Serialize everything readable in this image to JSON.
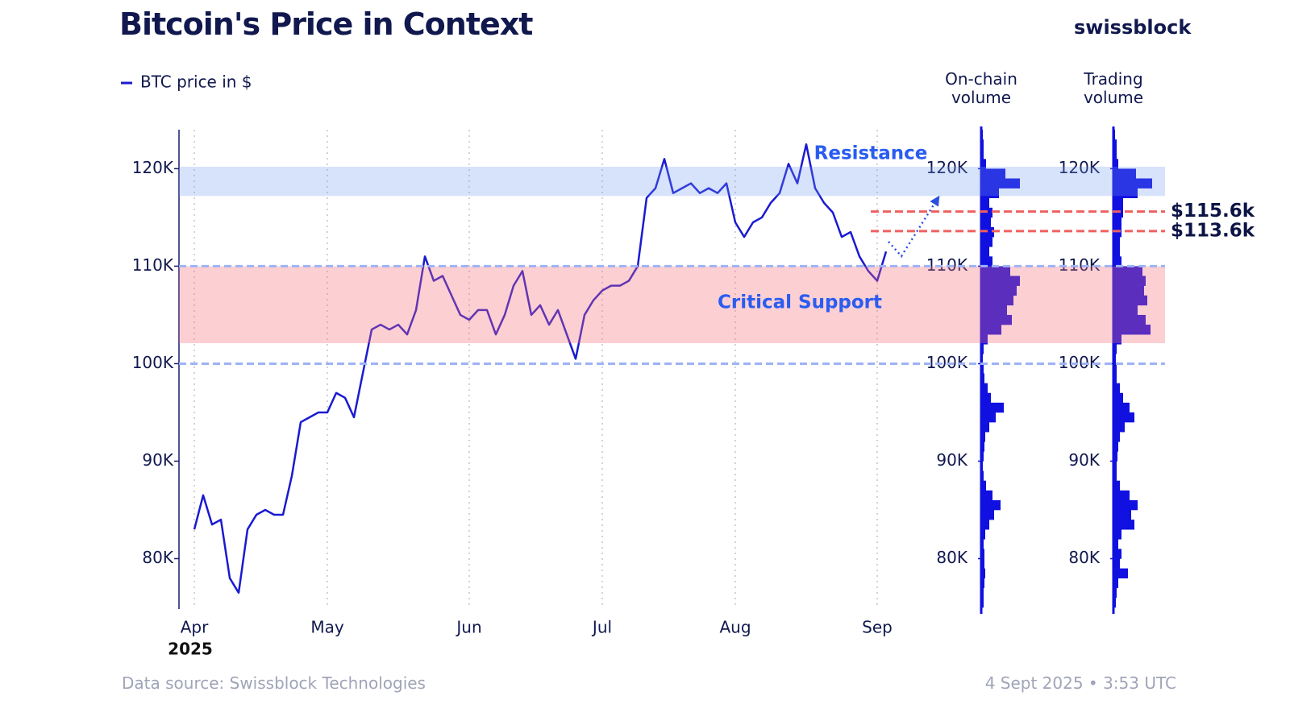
{
  "chart_data": [
    {
      "type": "line",
      "title": "Bitcoin's Price in Context",
      "brand": "swissblock",
      "source": "Data source: Swissblock Technologies",
      "timestamp": "4 Sept 2025 • 3:53 UTC",
      "x_year_label": "2025",
      "categories": [
        "Apr",
        null,
        null,
        null,
        null,
        null,
        null,
        null,
        null,
        null,
        null,
        null,
        null,
        null,
        null,
        "May",
        null,
        null,
        null,
        null,
        null,
        null,
        null,
        null,
        null,
        null,
        null,
        null,
        null,
        null,
        null,
        "Jun",
        null,
        null,
        null,
        null,
        null,
        null,
        null,
        null,
        null,
        null,
        null,
        null,
        null,
        null,
        "Jul",
        null,
        null,
        null,
        null,
        null,
        null,
        null,
        null,
        null,
        null,
        null,
        null,
        null,
        null,
        "Aug",
        null,
        null,
        null,
        null,
        null,
        null,
        null,
        null,
        null,
        null,
        null,
        null,
        null,
        null,
        null,
        "Sep",
        null
      ],
      "series": [
        {
          "name": "BTC price in $",
          "color": "#1a1ad0",
          "values": [
            83000,
            86500,
            83500,
            84000,
            78000,
            76500,
            83000,
            84500,
            85000,
            84500,
            84500,
            88500,
            94000,
            94500,
            95000,
            95000,
            97000,
            96500,
            94500,
            99000,
            103500,
            104000,
            103500,
            104000,
            103000,
            105500,
            111000,
            108500,
            109000,
            107000,
            105000,
            104500,
            105500,
            105500,
            103000,
            105000,
            108000,
            109500,
            105000,
            106000,
            104000,
            105500,
            103000,
            100500,
            105000,
            106500,
            107500,
            108000,
            108000,
            108500,
            110000,
            117000,
            118000,
            121000,
            117500,
            118000,
            118500,
            117500,
            118000,
            117500,
            118500,
            114500,
            113000,
            114500,
            115000,
            116500,
            117500,
            120500,
            118500,
            122500,
            118000,
            116500,
            115500,
            113000,
            113500,
            111000,
            109500,
            108500,
            111500
          ]
        }
      ],
      "ylim": [
        75000,
        124000
      ],
      "yticks": [
        {
          "value": 80000,
          "label": "80K"
        },
        {
          "value": 90000,
          "label": "90K"
        },
        {
          "value": 100000,
          "label": "100K"
        },
        {
          "value": 110000,
          "label": "110K"
        },
        {
          "value": 120000,
          "label": "120K"
        }
      ],
      "bands": [
        {
          "label": "Resistance",
          "range": [
            117200,
            120200
          ],
          "color": "rgba(110,150,240,0.28)",
          "label_color": "#2a5cf0"
        },
        {
          "label": "Critical Support",
          "range": [
            102100,
            110000
          ],
          "color": "rgba(245,110,120,0.33)",
          "label_color": "#2a5cf0"
        }
      ],
      "hlines": [
        {
          "value": 110000,
          "color": "#9db3f5"
        },
        {
          "value": 100000,
          "color": "#9db3f5"
        }
      ],
      "levels": [
        {
          "value": 115600,
          "label": "$115.6k",
          "color": "#f06060"
        },
        {
          "value": 113600,
          "label": "$113.6k",
          "color": "#f06060"
        }
      ]
    },
    {
      "type": "histogram",
      "title": "On-chain volume",
      "orientation": "horizontal",
      "color": "#1010e0",
      "bins": [
        75000,
        76000,
        77000,
        78000,
        79000,
        80000,
        81000,
        82000,
        83000,
        84000,
        85000,
        86000,
        87000,
        88000,
        89000,
        90000,
        91000,
        92000,
        93000,
        94000,
        95000,
        96000,
        97000,
        98000,
        99000,
        100000,
        101000,
        102000,
        103000,
        104000,
        105000,
        106000,
        107000,
        108000,
        109000,
        110000,
        111000,
        112000,
        113000,
        114000,
        115000,
        116000,
        117000,
        118000,
        119000,
        120000,
        121000,
        122000,
        123000,
        124000
      ],
      "values": [
        3,
        3,
        4,
        5,
        4,
        4,
        3,
        5,
        10,
        16,
        24,
        14,
        6,
        3,
        2,
        3,
        4,
        5,
        10,
        18,
        28,
        12,
        8,
        4,
        3,
        2,
        3,
        8,
        25,
        38,
        32,
        40,
        44,
        48,
        36,
        14,
        10,
        14,
        16,
        12,
        14,
        10,
        22,
        48,
        30,
        6,
        3,
        3,
        2
      ],
      "xlim": [
        0,
        50
      ],
      "ylim": [
        75000,
        124000
      ],
      "yticks": [
        {
          "value": 80000,
          "label": "80K"
        },
        {
          "value": 90000,
          "label": "90K"
        },
        {
          "value": 100000,
          "label": "100K"
        },
        {
          "value": 110000,
          "label": "110K"
        },
        {
          "value": 120000,
          "label": "120K"
        }
      ]
    },
    {
      "type": "histogram",
      "title": "Trading volume",
      "orientation": "horizontal",
      "color": "#1010e0",
      "bins": [
        75000,
        76000,
        77000,
        78000,
        79000,
        80000,
        81000,
        82000,
        83000,
        84000,
        85000,
        86000,
        87000,
        88000,
        89000,
        90000,
        91000,
        92000,
        93000,
        94000,
        95000,
        96000,
        97000,
        98000,
        99000,
        100000,
        101000,
        102000,
        103000,
        104000,
        105000,
        106000,
        107000,
        108000,
        109000,
        110000,
        111000,
        112000,
        113000,
        114000,
        115000,
        116000,
        117000,
        118000,
        119000,
        120000,
        121000,
        122000,
        123000,
        124000
      ],
      "values": [
        3,
        4,
        6,
        18,
        8,
        10,
        6,
        10,
        26,
        22,
        30,
        20,
        8,
        4,
        4,
        5,
        6,
        8,
        14,
        26,
        20,
        12,
        8,
        4,
        4,
        3,
        4,
        10,
        46,
        40,
        30,
        42,
        38,
        40,
        36,
        10,
        8,
        8,
        10,
        10,
        12,
        12,
        30,
        48,
        28,
        6,
        4,
        4,
        2
      ],
      "xlim": [
        0,
        50
      ],
      "ylim": [
        75000,
        124000
      ],
      "yticks": [
        {
          "value": 80000,
          "label": "80K"
        },
        {
          "value": 90000,
          "label": "90K"
        },
        {
          "value": 100000,
          "label": "100K"
        },
        {
          "value": 110000,
          "label": "110K"
        },
        {
          "value": 120000,
          "label": "120K"
        }
      ]
    }
  ]
}
